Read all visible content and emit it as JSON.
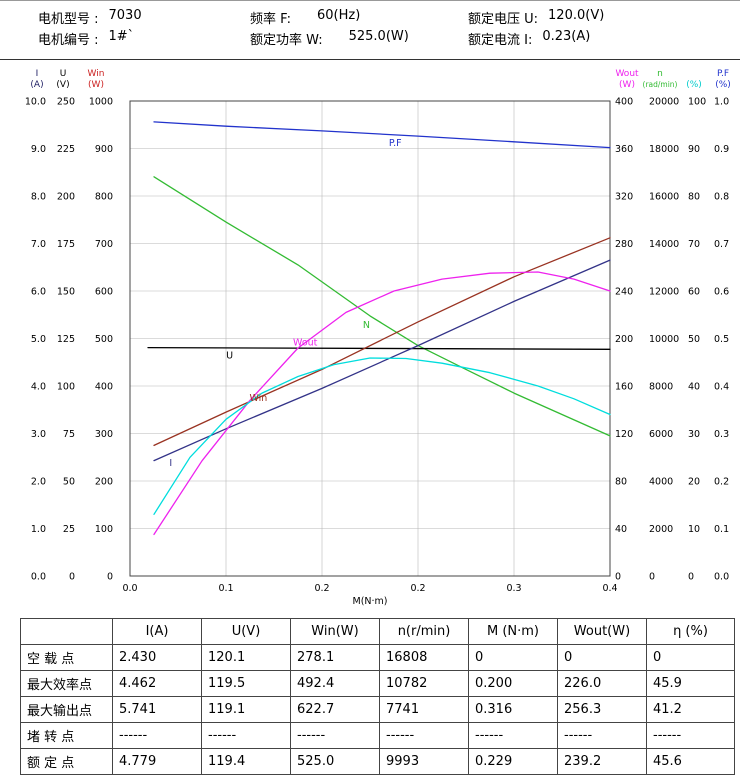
{
  "header": {
    "row1": [
      {
        "label": "电机型号 :",
        "value": "7030"
      },
      {
        "label": "频率 F:",
        "value": "60(Hz)"
      },
      {
        "label": "额定电压 U:",
        "value": "120.0(V)"
      }
    ],
    "row2": [
      {
        "label": "电机编号 :",
        "value": "1#`"
      },
      {
        "label": "额定功率 W:",
        "value": "525.0(W)"
      },
      {
        "label": "额定电流 I:",
        "value": "0.23(A)"
      }
    ]
  },
  "chart_data": {
    "type": "line",
    "title": "",
    "xlabel": "M(N·m)",
    "x_range": [
      0,
      0.4
    ],
    "x_tick_labels": [
      "0.0",
      "0.1",
      "0.2",
      "0.2",
      "0.3",
      "0.4"
    ],
    "grid": true,
    "axes": {
      "left": [
        {
          "name": "I",
          "unit": "(A)",
          "color": "#222266",
          "max": 10,
          "ticks": [
            "10.0",
            "9.0",
            "8.0",
            "7.0",
            "6.0",
            "5.0",
            "4.0",
            "3.0",
            "2.0",
            "1.0",
            "0.0"
          ]
        },
        {
          "name": "U",
          "unit": "(V)",
          "color": "#000000",
          "max": 250,
          "ticks": [
            "250",
            "225",
            "200",
            "175",
            "150",
            "125",
            "100",
            "75",
            "50",
            "25",
            "0"
          ]
        },
        {
          "name": "Win",
          "unit": "(W)",
          "color": "#cc2222",
          "max": 1000,
          "ticks": [
            "1000",
            "900",
            "800",
            "700",
            "600",
            "500",
            "400",
            "300",
            "200",
            "100",
            "0"
          ]
        }
      ],
      "right": [
        {
          "name": "Wout",
          "unit": "(W)",
          "color": "#ee22ee",
          "max": 400,
          "ticks": [
            "400",
            "360",
            "320",
            "280",
            "240",
            "200",
            "160",
            "120",
            "80",
            "40",
            "0"
          ]
        },
        {
          "name": "n",
          "unit": "(rad/min)",
          "color": "#33bb33",
          "max": 20000,
          "ticks": [
            "20000",
            "18000",
            "16000",
            "14000",
            "12000",
            "10000",
            "8000",
            "6000",
            "4000",
            "2000",
            "0"
          ]
        },
        {
          "name": "",
          "unit": "(%)",
          "color": "#00cccc",
          "max": 100,
          "ticks": [
            "100",
            "90",
            "80",
            "70",
            "60",
            "50",
            "40",
            "30",
            "20",
            "10",
            "0"
          ]
        },
        {
          "name": "P.F",
          "unit": "(%)",
          "color": "#2233cc",
          "max": 1.0,
          "ticks": [
            "1.0",
            "0.9",
            "0.8",
            "0.7",
            "0.6",
            "0.5",
            "0.4",
            "0.3",
            "0.2",
            "0.1",
            "0.0"
          ]
        }
      ]
    },
    "series": [
      {
        "key": "pf",
        "name": "P.F",
        "color": "#2233cc",
        "max": 1.0,
        "points": [
          [
            0.02,
            0.956
          ],
          [
            0.08,
            0.947
          ],
          [
            0.16,
            0.937
          ],
          [
            0.24,
            0.926
          ],
          [
            0.32,
            0.914
          ],
          [
            0.4,
            0.902
          ]
        ]
      },
      {
        "key": "n",
        "name": "n",
        "color": "#33bb33",
        "max": 20000,
        "points": [
          [
            0.02,
            16810
          ],
          [
            0.08,
            14900
          ],
          [
            0.14,
            13100
          ],
          [
            0.2,
            10950
          ],
          [
            0.24,
            9700
          ],
          [
            0.28,
            8700
          ],
          [
            0.32,
            7700
          ],
          [
            0.36,
            6800
          ],
          [
            0.4,
            5900
          ]
        ]
      },
      {
        "key": "u",
        "name": "U",
        "color": "#000000",
        "max": 250,
        "points": [
          [
            0.015,
            120.2
          ],
          [
            0.4,
            119.3
          ]
        ]
      },
      {
        "key": "win",
        "name": "Win",
        "color": "#993322",
        "max": 1000,
        "points": [
          [
            0.02,
            275
          ],
          [
            0.08,
            345
          ],
          [
            0.16,
            435
          ],
          [
            0.24,
            535
          ],
          [
            0.32,
            630
          ],
          [
            0.4,
            712
          ]
        ]
      },
      {
        "key": "i",
        "name": "I",
        "color": "#333388",
        "max": 10,
        "points": [
          [
            0.02,
            2.43
          ],
          [
            0.08,
            3.1
          ],
          [
            0.16,
            3.95
          ],
          [
            0.24,
            4.85
          ],
          [
            0.32,
            5.78
          ],
          [
            0.4,
            6.65
          ]
        ]
      },
      {
        "key": "wout",
        "name": "Wout",
        "color": "#ee22ee",
        "max": 400,
        "points": [
          [
            0.02,
            35
          ],
          [
            0.06,
            97
          ],
          [
            0.1,
            148
          ],
          [
            0.14,
            192
          ],
          [
            0.18,
            222
          ],
          [
            0.22,
            240
          ],
          [
            0.26,
            250
          ],
          [
            0.3,
            255
          ],
          [
            0.34,
            256
          ],
          [
            0.37,
            250
          ],
          [
            0.4,
            240
          ]
        ]
      },
      {
        "key": "eta",
        "name": "η",
        "color": "#00dddd",
        "max": 100,
        "points": [
          [
            0.02,
            13
          ],
          [
            0.05,
            25
          ],
          [
            0.08,
            33
          ],
          [
            0.11,
            38.5
          ],
          [
            0.14,
            42
          ],
          [
            0.17,
            44.5
          ],
          [
            0.2,
            45.9
          ],
          [
            0.23,
            45.8
          ],
          [
            0.26,
            44.8
          ],
          [
            0.3,
            42.8
          ],
          [
            0.34,
            40
          ],
          [
            0.37,
            37.3
          ],
          [
            0.4,
            34
          ]
        ]
      }
    ],
    "curve_labels": [
      {
        "text": "P.F",
        "color": "#2233cc",
        "x": 0.221,
        "y10": 9.05
      },
      {
        "text": "N",
        "color": "#33bb33",
        "x": 0.197,
        "y10": 5.22
      },
      {
        "text": "Wout",
        "color": "#ee22ee",
        "x": 0.146,
        "y10": 4.85
      },
      {
        "text": "U",
        "color": "#000000",
        "x": 0.083,
        "y10": 4.58
      },
      {
        "text": "Win",
        "color": "#993322",
        "x": 0.107,
        "y10": 3.68
      },
      {
        "text": "I",
        "color": "#333388",
        "x": 0.034,
        "y10": 2.32
      }
    ]
  },
  "table": {
    "columns": [
      "",
      "I(A)",
      "U(V)",
      "Win(W)",
      "n(r/min)",
      "M (N·m)",
      "Wout(W)",
      "η (%)"
    ],
    "rows": [
      {
        "label": "空 载 点",
        "values": [
          "2.430",
          "120.1",
          "278.1",
          "16808",
          "0",
          "0",
          "0"
        ]
      },
      {
        "label": "最大效率点",
        "values": [
          "4.462",
          "119.5",
          "492.4",
          "10782",
          "0.200",
          "226.0",
          "45.9"
        ]
      },
      {
        "label": "最大输出点",
        "values": [
          "5.741",
          "119.1",
          "622.7",
          "7741",
          "0.316",
          "256.3",
          "41.2"
        ]
      },
      {
        "label": "堵 转 点",
        "values": [
          "------",
          "------",
          "------",
          "------",
          "------",
          "------",
          "------"
        ]
      },
      {
        "label": "额 定 点",
        "values": [
          "4.779",
          "119.4",
          "525.0",
          "9993",
          "0.229",
          "239.2",
          "45.6"
        ]
      }
    ]
  }
}
